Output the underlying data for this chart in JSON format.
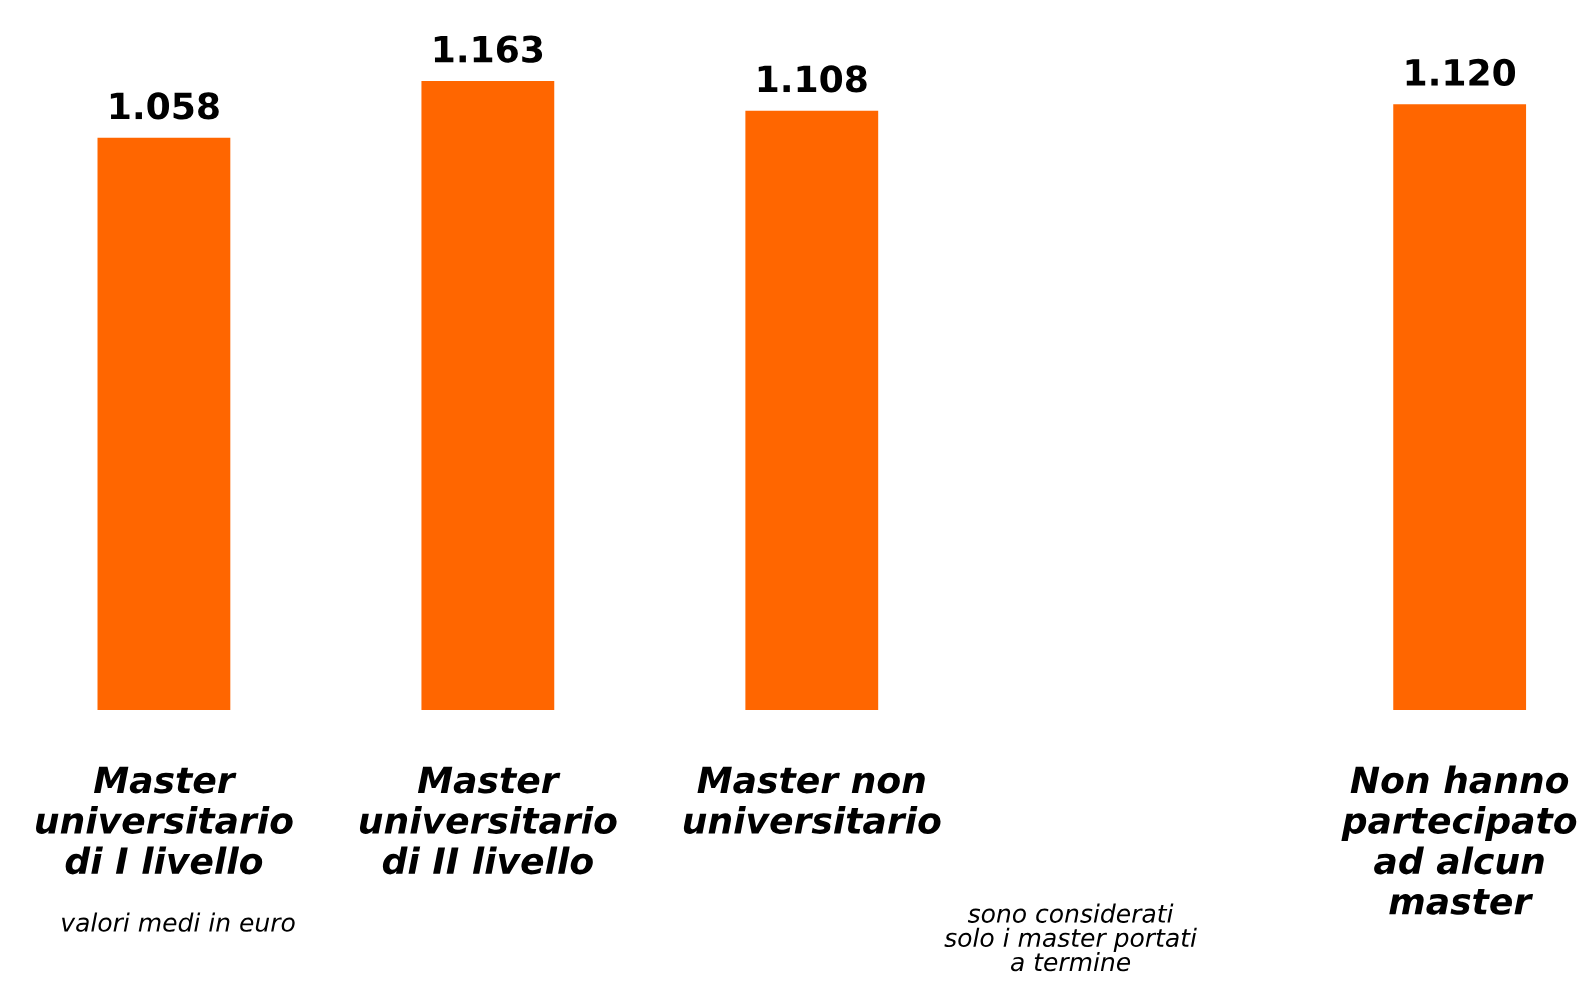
{
  "chart_data": {
    "type": "bar",
    "categories": [
      "Master\nuniversitario\ndi I livello",
      "Master\nuniversitario\ndi II livello",
      "Master non\nuniversitario",
      null,
      "Non hanno\npartecipato\nad alcun\nmaster"
    ],
    "values": [
      1058,
      1163,
      1108,
      null,
      1120
    ],
    "value_labels": [
      "1.058",
      "1.163",
      "1.108",
      null,
      "1.120"
    ],
    "color": "#ff6600",
    "tick_labels": "x",
    "grid": false,
    "annotations": [
      "valori medi in euro",
      "sono considerati\nsolo i master portati\na termine"
    ]
  }
}
